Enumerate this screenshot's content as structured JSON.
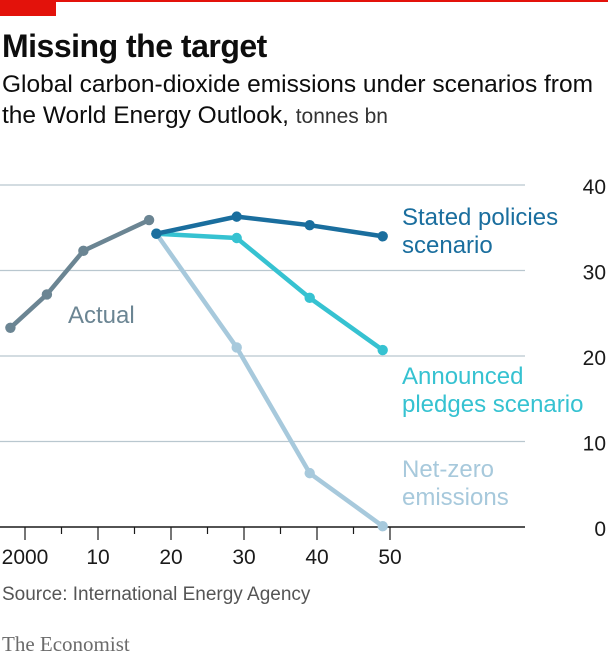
{
  "header": {
    "title": "Missing the target",
    "subtitle": "Global carbon-dioxide emissions under scenarios from the World Energy Outlook,",
    "unit": "tonnes bn"
  },
  "footer": {
    "source": "Source: International Energy Agency",
    "brand": "The Economist"
  },
  "colors": {
    "actual": "#6b8593",
    "stated": "#1a6e9e",
    "announced": "#36c2d1",
    "netzero": "#a7c9dc",
    "grid": "#b9c7cf",
    "axis": "#1a1a1a",
    "accent": "#e3120b"
  },
  "chart_data": {
    "type": "line",
    "title": "Missing the target",
    "xlim": [
      2000,
      2050
    ],
    "ylim": [
      0,
      40
    ],
    "y_ticks": [
      0,
      10,
      20,
      30,
      40
    ],
    "y_tick_labels": [
      "0",
      "10",
      "20",
      "30",
      "40"
    ],
    "x_ticks": [
      2000,
      2010,
      2020,
      2030,
      2040,
      2050
    ],
    "x_tick_labels": [
      "2000",
      "10",
      "20",
      "30",
      "40",
      "50"
    ],
    "x_minor_ticks": [
      2005,
      2015,
      2025,
      2035,
      2045
    ],
    "grid": true,
    "series": [
      {
        "name": "Actual",
        "key": "actual",
        "points": [
          [
            1998,
            23.3
          ],
          [
            2003,
            27.2
          ],
          [
            2008,
            32.3
          ],
          [
            2017,
            35.9
          ]
        ]
      },
      {
        "name": "Stated policies scenario",
        "key": "stated",
        "points": [
          [
            2018,
            34.3
          ],
          [
            2029,
            36.3
          ],
          [
            2039,
            35.3
          ],
          [
            2049,
            34.0
          ]
        ]
      },
      {
        "name": "Announced pledges scenario",
        "key": "announced",
        "points": [
          [
            2018,
            34.3
          ],
          [
            2029,
            33.8
          ],
          [
            2039,
            26.8
          ],
          [
            2049,
            20.7
          ]
        ]
      },
      {
        "name": "Net-zero emissions",
        "key": "netzero",
        "points": [
          [
            2018,
            34.3
          ],
          [
            2029,
            21.0
          ],
          [
            2039,
            6.3
          ],
          [
            2049,
            0.1
          ]
        ]
      }
    ]
  }
}
